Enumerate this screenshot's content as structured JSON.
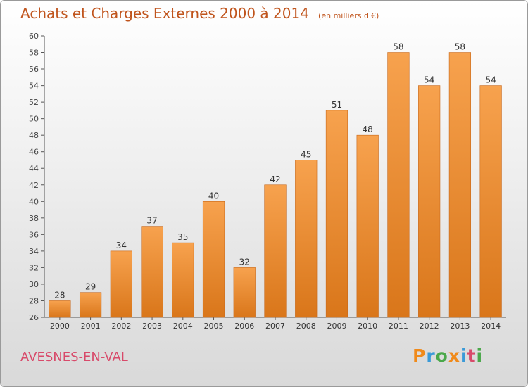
{
  "title": "Achats et Charges Externes 2000 à 2014",
  "unit": "(en milliers d'€)",
  "commune": "AVESNES-EN-VAL",
  "logo": {
    "letters": [
      "P",
      "r",
      "o",
      "x",
      "i",
      "t",
      "i"
    ],
    "colors": [
      "#f08a1a",
      "#3a9ad8",
      "#4aa84a",
      "#f08a1a",
      "#3a9ad8",
      "#d84a6a",
      "#4aa84a"
    ]
  },
  "colors": {
    "title": "#c0541c",
    "bar_top": "#f7a24e",
    "bar_bottom": "#d9761a",
    "commune": "#d84a6a"
  },
  "chart_data": {
    "type": "bar",
    "categories": [
      "2000",
      "2001",
      "2002",
      "2003",
      "2004",
      "2005",
      "2006",
      "2007",
      "2008",
      "2009",
      "2010",
      "2011",
      "2012",
      "2013",
      "2014"
    ],
    "values": [
      28,
      29,
      34,
      37,
      35,
      40,
      32,
      42,
      45,
      51,
      48,
      58,
      54,
      58,
      54
    ],
    "ylim": [
      26,
      60
    ],
    "yticks": [
      26,
      28,
      30,
      32,
      34,
      36,
      38,
      40,
      42,
      44,
      46,
      48,
      50,
      52,
      54,
      56,
      58,
      60
    ],
    "grid": false
  }
}
